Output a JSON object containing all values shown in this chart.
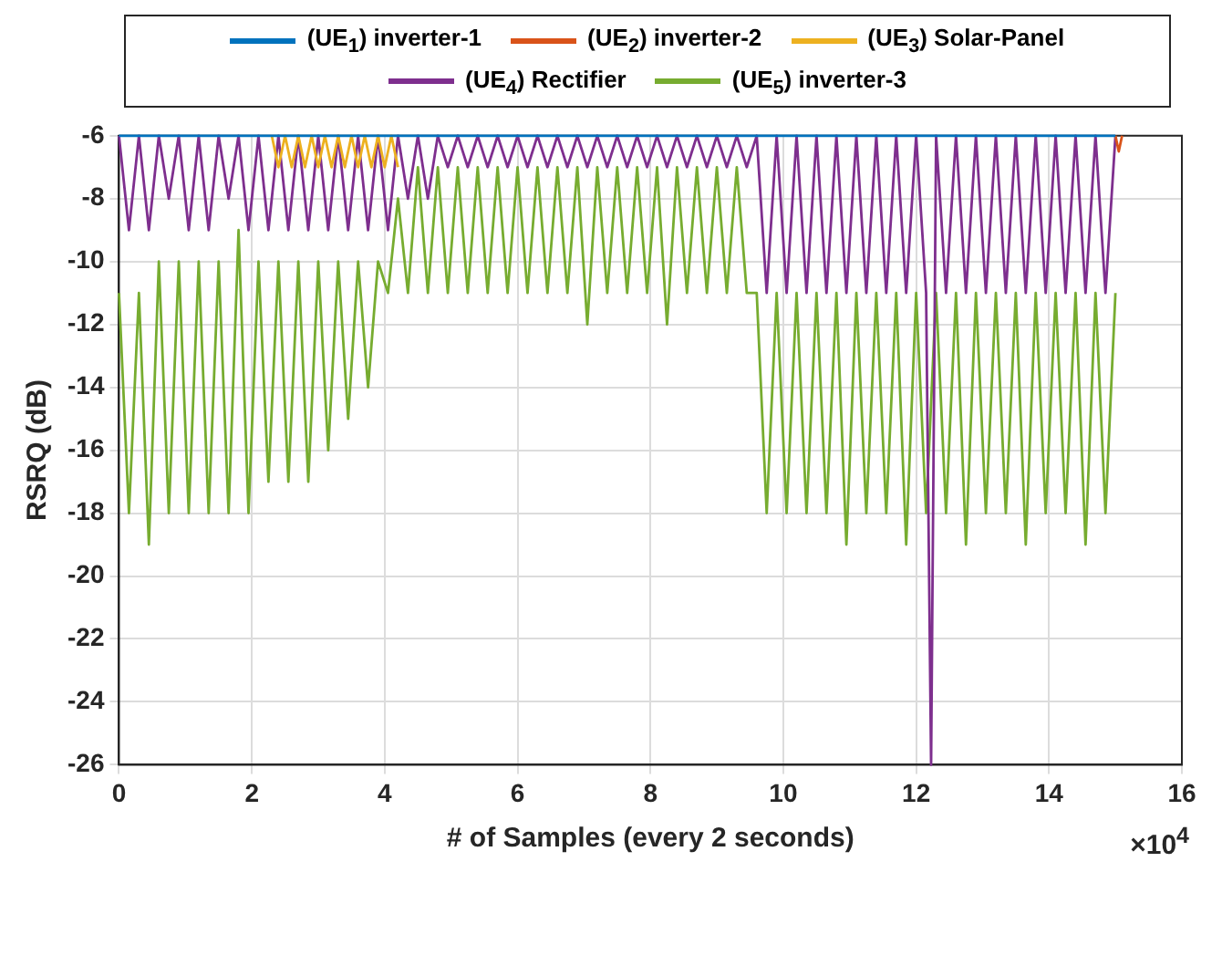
{
  "chart_data": {
    "type": "line",
    "xlabel": "# of Samples (every 2 seconds)",
    "ylabel": "RSRQ (dB)",
    "annotations": [
      "×10$^{4}$"
    ],
    "xlim": [
      0,
      16
    ],
    "xticks": [
      0,
      2,
      4,
      6,
      8,
      10,
      12,
      14,
      16
    ],
    "ylim": [
      -26,
      -6
    ],
    "yticks": [
      -26,
      -24,
      -22,
      -20,
      -18,
      -16,
      -14,
      -12,
      -10,
      -8,
      -6
    ],
    "grid": true,
    "legend": "top",
    "marker": "none",
    "line_style": "solid",
    "series": [
      {
        "name": "(UE$_{1}$) inverter-1",
        "color": "#0072bd",
        "x": [
          0,
          15
        ],
        "values": [
          -6,
          -6
        ]
      },
      {
        "name": "(UE$_{2}$) inverter-2",
        "color": "#d95319",
        "x": [
          15.0,
          15.05,
          15.1
        ],
        "values": [
          -6,
          -6.5,
          -6
        ]
      },
      {
        "name": "(UE$_{3}$) Solar-Panel",
        "color": "#edb120",
        "x": [
          2.3,
          2.4,
          2.5,
          2.6,
          2.7,
          2.8,
          2.9,
          3.0,
          3.1,
          3.2,
          3.3,
          3.4,
          3.5,
          3.6,
          3.7,
          3.8,
          3.9,
          4.0,
          4.1,
          4.2
        ],
        "values": [
          -6,
          -7,
          -6,
          -7,
          -6,
          -7,
          -6,
          -7,
          -6,
          -7,
          -6,
          -7,
          -6,
          -7,
          -6,
          -7,
          -6,
          -7,
          -6,
          -7
        ]
      },
      {
        "name": "(UE$_{4}$) Rectifier",
        "color": "#7e2f8e",
        "x": [
          0,
          0.15,
          0.3,
          0.45,
          0.6,
          0.75,
          0.9,
          1.05,
          1.2,
          1.35,
          1.5,
          1.65,
          1.8,
          1.95,
          2.1,
          2.25,
          2.4,
          2.55,
          2.7,
          2.85,
          3.0,
          3.15,
          3.3,
          3.45,
          3.6,
          3.75,
          3.9,
          4.05,
          4.2,
          4.35,
          4.5,
          4.65,
          4.8,
          4.95,
          5.1,
          5.25,
          5.4,
          5.55,
          5.7,
          5.85,
          6.0,
          6.15,
          6.3,
          6.45,
          6.6,
          6.75,
          6.9,
          7.05,
          7.2,
          7.35,
          7.5,
          7.65,
          7.8,
          7.95,
          8.1,
          8.25,
          8.4,
          8.55,
          8.7,
          8.85,
          9.0,
          9.15,
          9.3,
          9.45,
          9.6,
          9.75,
          9.9,
          10.05,
          10.2,
          10.35,
          10.5,
          10.65,
          10.8,
          10.95,
          11.1,
          11.25,
          11.4,
          11.55,
          11.7,
          11.85,
          12.0,
          12.15,
          12.225,
          12.3,
          12.45,
          12.6,
          12.75,
          12.9,
          13.05,
          13.2,
          13.35,
          13.5,
          13.65,
          13.8,
          13.95,
          14.1,
          14.25,
          14.4,
          14.55,
          14.7,
          14.85,
          15.0
        ],
        "values": [
          -6,
          -9,
          -6,
          -9,
          -6,
          -8,
          -6,
          -9,
          -6,
          -9,
          -6,
          -8,
          -6,
          -9,
          -6,
          -9,
          -6,
          -9,
          -6,
          -9,
          -6,
          -9,
          -6,
          -9,
          -6,
          -9,
          -6,
          -9,
          -6,
          -8,
          -6,
          -8,
          -6,
          -7,
          -6,
          -7,
          -6,
          -7,
          -6,
          -7,
          -6,
          -7,
          -6,
          -7,
          -6,
          -7,
          -6,
          -7,
          -6,
          -7,
          -6,
          -7,
          -6,
          -7,
          -6,
          -7,
          -6,
          -7,
          -6,
          -7,
          -6,
          -7,
          -6,
          -7,
          -6,
          -11,
          -6,
          -11,
          -6,
          -11,
          -6,
          -11,
          -6,
          -11,
          -6,
          -11,
          -6,
          -11,
          -6,
          -11,
          -6,
          -11,
          -26,
          -6,
          -11,
          -6,
          -11,
          -6,
          -11,
          -6,
          -11,
          -6,
          -11,
          -6,
          -11,
          -6,
          -11,
          -6,
          -11,
          -6,
          -11,
          -6
        ]
      },
      {
        "name": "(UE$_{5}$) inverter-3",
        "color": "#77ac30",
        "x": [
          0,
          0.15,
          0.3,
          0.45,
          0.6,
          0.75,
          0.9,
          1.05,
          1.2,
          1.35,
          1.5,
          1.65,
          1.8,
          1.95,
          2.1,
          2.25,
          2.4,
          2.55,
          2.7,
          2.85,
          3.0,
          3.15,
          3.3,
          3.45,
          3.6,
          3.75,
          3.9,
          4.05,
          4.2,
          4.35,
          4.5,
          4.65,
          4.8,
          4.95,
          5.1,
          5.25,
          5.4,
          5.55,
          5.7,
          5.85,
          6.0,
          6.15,
          6.3,
          6.45,
          6.6,
          6.75,
          6.9,
          7.05,
          7.2,
          7.35,
          7.5,
          7.65,
          7.8,
          7.95,
          8.1,
          8.25,
          8.4,
          8.55,
          8.7,
          8.85,
          9.0,
          9.15,
          9.3,
          9.45,
          9.6,
          9.75,
          9.9,
          10.05,
          10.2,
          10.35,
          10.5,
          10.65,
          10.8,
          10.95,
          11.1,
          11.25,
          11.4,
          11.55,
          11.7,
          11.85,
          12.0,
          12.15,
          12.3,
          12.45,
          12.6,
          12.75,
          12.9,
          13.05,
          13.2,
          13.35,
          13.5,
          13.65,
          13.8,
          13.95,
          14.1,
          14.25,
          14.4,
          14.55,
          14.7,
          14.85,
          15.0
        ],
        "values": [
          -11,
          -18,
          -11,
          -19,
          -10,
          -18,
          -10,
          -18,
          -10,
          -18,
          -10,
          -18,
          -9,
          -18,
          -10,
          -17,
          -10,
          -17,
          -10,
          -17,
          -10,
          -16,
          -10,
          -15,
          -10,
          -14,
          -10,
          -11,
          -8,
          -11,
          -7,
          -11,
          -7,
          -11,
          -7,
          -11,
          -7,
          -11,
          -7,
          -11,
          -7,
          -11,
          -7,
          -11,
          -7,
          -11,
          -7,
          -12,
          -7,
          -11,
          -7,
          -11,
          -7,
          -11,
          -7,
          -12,
          -7,
          -11,
          -7,
          -11,
          -7,
          -11,
          -7,
          -11,
          -11,
          -18,
          -11,
          -18,
          -11,
          -18,
          -11,
          -18,
          -11,
          -19,
          -11,
          -18,
          -11,
          -18,
          -11,
          -19,
          -11,
          -18,
          -11,
          -18,
          -11,
          -19,
          -11,
          -18,
          -11,
          -18,
          -11,
          -19,
          -11,
          -18,
          -11,
          -18,
          -11,
          -19,
          -11,
          -18,
          -11
        ]
      }
    ]
  }
}
